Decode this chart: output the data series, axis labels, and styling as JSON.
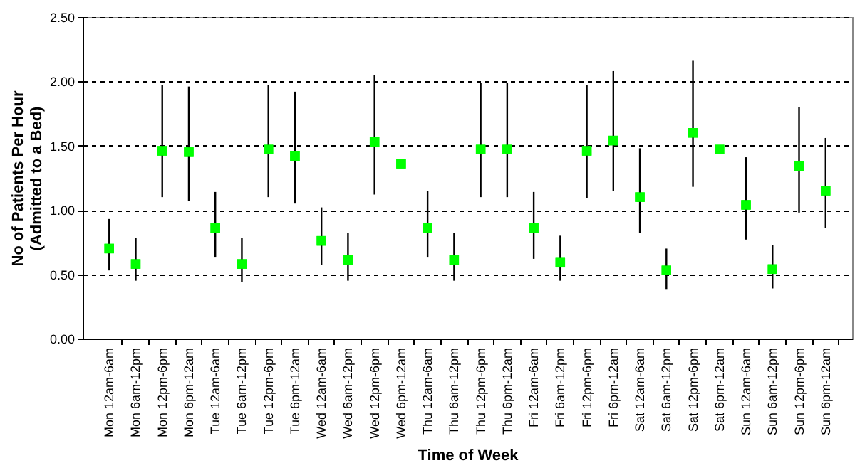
{
  "chart_data": {
    "type": "scatter",
    "xlabel": "Time of Week",
    "ylabel": "No of Patients Per Hour\n(Admitted to a Bed)",
    "categories": [
      "Mon 12am-6am",
      "Mon 6am-12pm",
      "Mon 12pm-6pm",
      "Mon 6pm-12am",
      "Tue 12am-6am",
      "Tue 6am-12pm",
      "Tue 12pm-6pm",
      "Tue 6pm-12am",
      "Wed 12am-6am",
      "Wed 6am-12pm",
      "Wed 12pm-6pm",
      "Wed 6pm-12am",
      "Thu 12am-6am",
      "Thu 6am-12pm",
      "Thu 12pm-6pm",
      "Thu 6pm-12am",
      "Fri 12am-6am",
      "Fri 6am-12pm",
      "Fri 12pm-6pm",
      "Fri 6pm-12am",
      "Sat 12am-6am",
      "Sat 6am-12pm",
      "Sat 12pm-6pm",
      "Sat 6pm-12am",
      "Sun 12am-6am",
      "Sun 6am-12pm",
      "Sun 12pm-6pm",
      "Sun 6pm-12am"
    ],
    "values": [
      0.7,
      0.58,
      1.46,
      1.45,
      0.86,
      0.58,
      1.47,
      1.42,
      0.76,
      0.61,
      1.53,
      1.36,
      0.86,
      0.61,
      1.47,
      1.47,
      0.86,
      0.59,
      1.46,
      1.54,
      1.1,
      0.53,
      1.6,
      1.47,
      1.04,
      0.54,
      1.34,
      1.15
    ],
    "errors": [
      [
        0.53,
        0.93
      ],
      [
        0.45,
        0.78
      ],
      [
        1.1,
        1.97
      ],
      [
        1.07,
        1.96
      ],
      [
        0.63,
        1.14
      ],
      [
        0.44,
        0.78
      ],
      [
        1.1,
        1.97
      ],
      [
        1.05,
        1.92
      ],
      [
        0.57,
        1.02
      ],
      [
        0.45,
        0.82
      ],
      [
        1.12,
        2.05
      ],
      null,
      [
        0.63,
        1.15
      ],
      [
        0.45,
        0.82
      ],
      [
        1.1,
        1.99
      ],
      [
        1.1,
        1.99
      ],
      [
        0.62,
        1.14
      ],
      [
        0.45,
        0.8
      ],
      [
        1.09,
        1.97
      ],
      [
        1.15,
        2.08
      ],
      [
        0.82,
        1.48
      ],
      [
        0.38,
        0.7
      ],
      [
        1.18,
        2.16
      ],
      null,
      [
        0.77,
        1.41
      ],
      [
        0.39,
        0.73
      ],
      [
        0.98,
        1.8
      ],
      [
        0.86,
        1.56
      ]
    ],
    "color": "#00ff00",
    "marker": "square",
    "ylim": [
      0,
      2.5
    ],
    "yticks": [
      {
        "value": 0,
        "label": "0.00"
      },
      {
        "value": 0.5,
        "label": "0.50"
      },
      {
        "value": 1,
        "label": "1.00"
      },
      {
        "value": 1.5,
        "label": "1.50"
      },
      {
        "value": 2,
        "label": "2.00"
      },
      {
        "value": 2.5,
        "label": "2.50"
      }
    ],
    "grid": "y"
  }
}
